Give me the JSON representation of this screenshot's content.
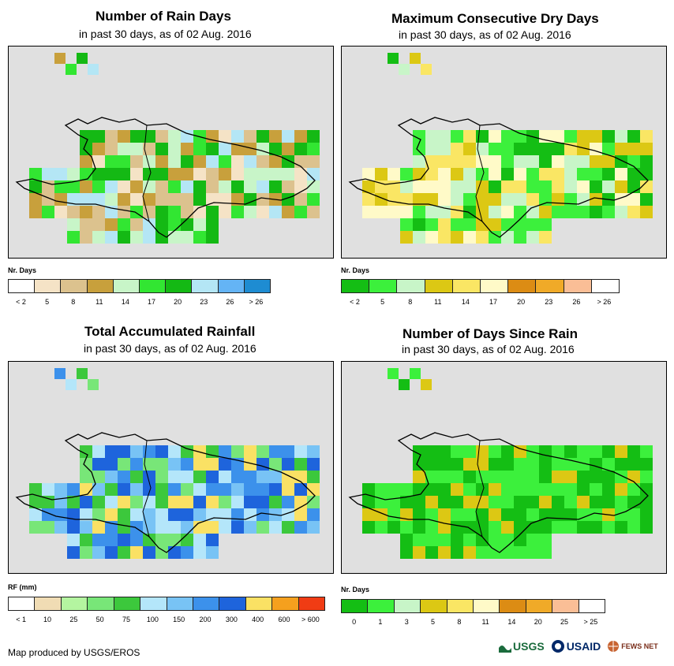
{
  "panels": [
    {
      "title": "Number of Rain Days",
      "subtitle": "in past 30 days, as of 02 Aug. 2016",
      "legend_title": "Nr. Days",
      "legend_labels": [
        "< 2",
        "5",
        "8",
        "11",
        "14",
        "17",
        "20",
        "23",
        "26",
        "> 26"
      ],
      "legend_colors": [
        "#ffffff",
        "#f5e3c6",
        "#dcc28e",
        "#c8a03c",
        "#c8f5c8",
        "#32e632",
        "#14b914",
        "#b4e6f5",
        "#64b4f5",
        "#1e8cd2"
      ]
    },
    {
      "title": "Maximum Consecutive Dry Days",
      "subtitle": "in past 30 days, as of 02 Aug. 2016",
      "legend_title": "Nr. Days",
      "legend_labels": [
        "< 2",
        "5",
        "8",
        "11",
        "14",
        "17",
        "20",
        "23",
        "26",
        "> 26"
      ],
      "legend_colors": [
        "#14be14",
        "#3cf03c",
        "#c8f5c8",
        "#dcc814",
        "#fae664",
        "#fffac8",
        "#dc8c14",
        "#f0aa28",
        "#fabe96",
        "#ffffff"
      ]
    },
    {
      "title": "Total Accumulated Rainfall",
      "subtitle": "in past 30 days, as of 02 Aug. 2016",
      "legend_title": "RF (mm)",
      "legend_labels": [
        "< 1",
        "10",
        "25",
        "50",
        "75",
        "100",
        "150",
        "200",
        "300",
        "400",
        "600",
        "> 600"
      ],
      "legend_colors": [
        "#ffffff",
        "#f0dcb4",
        "#b4f5a0",
        "#78e678",
        "#3cc83c",
        "#b4e6fa",
        "#78c3f5",
        "#3c91eb",
        "#1e64dc",
        "#fae164",
        "#f5a01e",
        "#f03c14"
      ]
    },
    {
      "title": "Number of Days Since Rain",
      "subtitle": "in past 30 days, as of 02 Aug. 2016",
      "legend_title": "Nr. Days",
      "legend_labels": [
        "0",
        "1",
        "3",
        "5",
        "8",
        "11",
        "14",
        "20",
        "25",
        "> 25"
      ],
      "legend_colors": [
        "#14be14",
        "#3cf03c",
        "#c8f5c8",
        "#dcc814",
        "#fae664",
        "#fffac8",
        "#dc8c14",
        "#f0aa28",
        "#fabe96",
        "#ffffff"
      ]
    }
  ],
  "footer": {
    "credit": "Map produced by USGS/EROS"
  },
  "logos": {
    "usgs": "USGS",
    "usaid": "USAID",
    "fews": "FEWS NET"
  }
}
